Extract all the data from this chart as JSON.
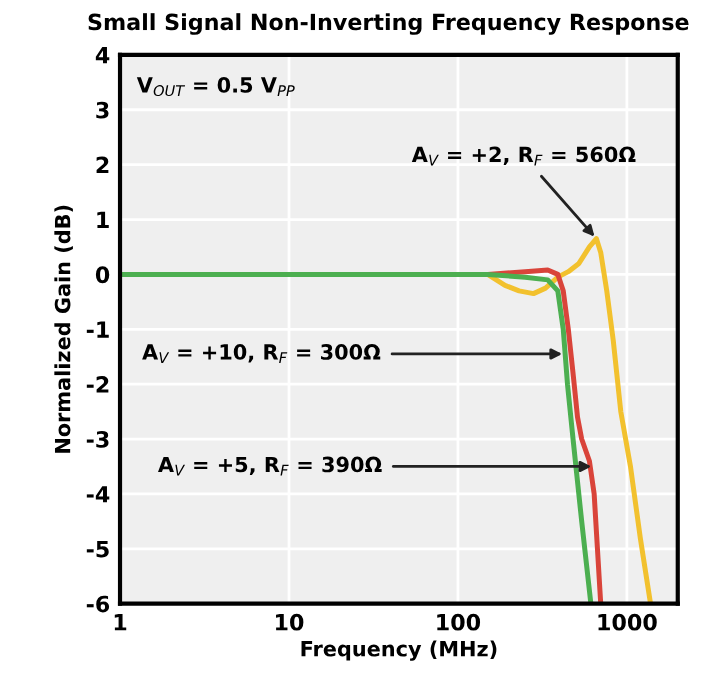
{
  "chart_data": {
    "type": "line",
    "title": "Small Signal Non-Inverting Frequency Response",
    "xlabel": "Frequency (MHz)",
    "ylabel": "Normalized Gain (dB)",
    "log": "x",
    "xlim": [
      1,
      2000
    ],
    "xticks": [
      1,
      10,
      100,
      1000
    ],
    "ylim": [
      -6,
      4
    ],
    "yticks": [
      -6,
      -5,
      -4,
      -3,
      -2,
      -1,
      0,
      1,
      2,
      3,
      4
    ],
    "grid": true,
    "marker": "none",
    "line_style": "solid",
    "series": [
      {
        "color": "#f2c12e",
        "x": [
          1,
          150,
          190,
          230,
          280,
          330,
          390,
          450,
          520,
          600,
          660,
          700,
          760,
          830,
          920,
          1050,
          1200,
          1380
        ],
        "values": [
          0,
          0,
          -0.2,
          -0.3,
          -0.35,
          -0.25,
          -0.05,
          0.05,
          0.2,
          0.5,
          0.65,
          0.4,
          -0.3,
          -1.2,
          -2.5,
          -3.5,
          -4.8,
          -6
        ]
      },
      {
        "color": "#d9443a",
        "x": [
          1,
          150,
          250,
          340,
          390,
          420,
          450,
          480,
          495,
          510,
          540,
          600,
          640,
          700
        ],
        "values": [
          0,
          0,
          0.05,
          0.08,
          0,
          -0.3,
          -1,
          -1.8,
          -2.2,
          -2.6,
          -3,
          -3.4,
          -4,
          -6
        ]
      },
      {
        "color": "#4caf50",
        "x": [
          1,
          150,
          250,
          340,
          390,
          420,
          445,
          480,
          540,
          612
        ],
        "values": [
          0,
          0,
          -0.05,
          -0.1,
          -0.3,
          -1,
          -2,
          -3,
          -4.5,
          -6
        ]
      }
    ],
    "annotations": [
      "V$_{OUT}$ = 0.5 V$_{PP}$",
      {
        "text": "A$_{V}$ = +2, R$_{F}$ = 560Ω",
        "x": 660,
        "y": 0.65
      },
      {
        "text": "A$_{V}$ = +10, R$_{F}$ = 300Ω",
        "x": 430,
        "y": -1.45
      },
      {
        "text": "A$_{V}$ = +5, R$_{F}$ = 390Ω",
        "x": 640,
        "y": -3.5
      }
    ]
  }
}
